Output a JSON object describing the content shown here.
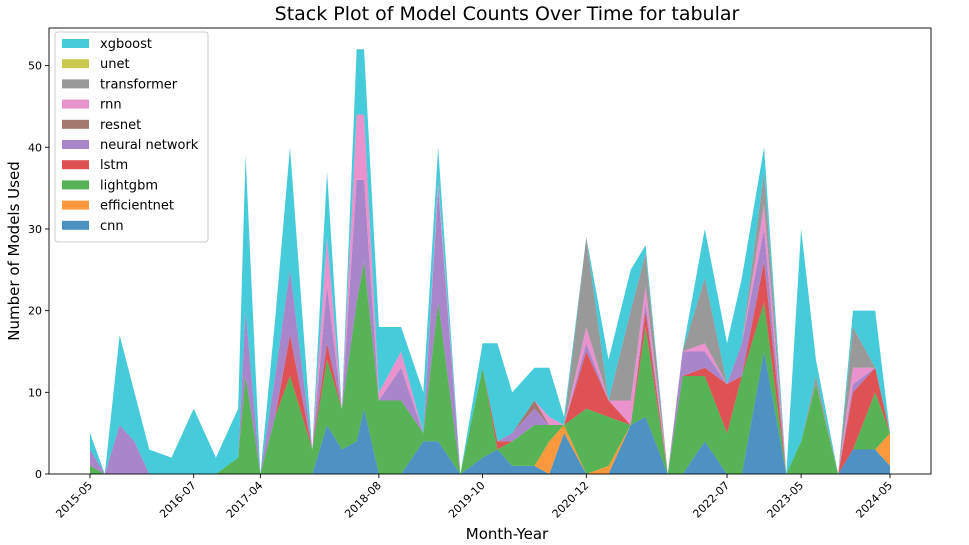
{
  "chart_data": {
    "type": "area",
    "stacked": true,
    "title": "Stack Plot of Model Counts Over Time for tabular",
    "xlabel": "Month-Year",
    "ylabel": "Number of Models Used",
    "xlim": [
      "2015-05",
      "2024-05"
    ],
    "ylim": [
      0,
      54.6
    ],
    "x_ticks": [
      "2015-05",
      "2016-07",
      "2017-04",
      "2018-08",
      "2019-10",
      "2020-12",
      "2022-07",
      "2023-05",
      "2024-05"
    ],
    "y_ticks": [
      0,
      10,
      20,
      30,
      40,
      50
    ],
    "legend_position": "upper-left",
    "x": [
      "2015-05",
      "2015-07",
      "2015-09",
      "2015-11",
      "2016-01",
      "2016-04",
      "2016-07",
      "2016-10",
      "2017-01",
      "2017-02",
      "2017-04",
      "2017-06",
      "2017-08",
      "2017-11",
      "2018-01",
      "2018-03",
      "2018-05",
      "2018-06",
      "2018-08",
      "2018-11",
      "2019-02",
      "2019-04",
      "2019-07",
      "2019-10",
      "2019-12",
      "2020-02",
      "2020-05",
      "2020-07",
      "2020-09",
      "2020-12",
      "2021-03",
      "2021-06",
      "2021-08",
      "2021-11",
      "2022-01",
      "2022-04",
      "2022-07",
      "2022-09",
      "2022-12",
      "2023-03",
      "2023-05",
      "2023-07",
      "2023-10",
      "2023-12",
      "2024-03",
      "2024-05"
    ],
    "series": [
      {
        "name": "cnn",
        "color": "#1f77b4",
        "values": [
          0,
          0,
          0,
          0,
          0,
          0,
          0,
          0,
          0,
          0,
          0,
          0,
          0,
          0,
          6,
          3,
          4,
          8,
          0,
          0,
          4,
          4,
          0,
          2,
          3,
          1,
          1,
          0,
          5,
          0,
          0,
          6,
          7,
          0,
          0,
          4,
          0,
          0,
          15,
          0,
          0,
          0,
          0,
          3,
          3,
          1
        ]
      },
      {
        "name": "efficientnet",
        "color": "#ff7f0e",
        "values": [
          0,
          0,
          0,
          0,
          0,
          0,
          0,
          0,
          0,
          0,
          0,
          0,
          0,
          0,
          0,
          0,
          0,
          0,
          0,
          0,
          0,
          0,
          0,
          0,
          0,
          0,
          0,
          4,
          1,
          0,
          1,
          0,
          0,
          0,
          0,
          0,
          0,
          0,
          0,
          0,
          0,
          0,
          0,
          0,
          0,
          4
        ]
      },
      {
        "name": "lightgbm",
        "color": "#2ca02c",
        "values": [
          1,
          0,
          0,
          0,
          0,
          0,
          0,
          0,
          2,
          12,
          0,
          7,
          12,
          3,
          8,
          5,
          17,
          18,
          9,
          9,
          1,
          17,
          0,
          11,
          0,
          3,
          5,
          2,
          0,
          8,
          6,
          0,
          11,
          0,
          12,
          8,
          5,
          12,
          6,
          0,
          4,
          11,
          0,
          0,
          7,
          0
        ]
      },
      {
        "name": "lstm",
        "color": "#d62728",
        "values": [
          0,
          0,
          0,
          0,
          0,
          0,
          0,
          0,
          0,
          0,
          0,
          0,
          5,
          0,
          2,
          0,
          0,
          0,
          0,
          0,
          0,
          0,
          0,
          0,
          1,
          0,
          0,
          0,
          0,
          7,
          2,
          0,
          2,
          0,
          0,
          1,
          6,
          0,
          5,
          0,
          0,
          0,
          0,
          7,
          3,
          0
        ]
      },
      {
        "name": "neural network",
        "color": "#9467bd",
        "values": [
          2,
          0,
          6,
          4,
          0,
          0,
          0,
          0,
          0,
          8,
          0,
          5,
          8,
          0,
          7,
          0,
          15,
          10,
          0,
          4,
          0,
          14,
          0,
          0,
          0,
          1,
          2,
          0,
          0,
          1,
          0,
          0,
          1,
          0,
          3,
          2,
          0,
          4,
          4,
          0,
          0,
          0,
          0,
          1,
          0,
          0
        ]
      },
      {
        "name": "resnet",
        "color": "#8c564b",
        "values": [
          0,
          0,
          0,
          0,
          0,
          0,
          0,
          0,
          0,
          0,
          0,
          0,
          0,
          0,
          0,
          0,
          0,
          0,
          0,
          0,
          0,
          0,
          0,
          0,
          0,
          0,
          1,
          0,
          0,
          0,
          0,
          0,
          0,
          0,
          0,
          0,
          0,
          0,
          0,
          0,
          0,
          0,
          0,
          0,
          0,
          0
        ]
      },
      {
        "name": "rnn",
        "color": "#e377c2",
        "values": [
          0,
          0,
          0,
          0,
          0,
          0,
          0,
          0,
          0,
          0,
          0,
          0,
          0,
          0,
          6,
          0,
          8,
          8,
          1,
          2,
          0,
          1,
          0,
          0,
          0,
          0,
          0,
          1,
          0,
          2,
          0,
          3,
          2,
          0,
          0,
          1,
          0,
          0,
          3,
          0,
          0,
          0,
          0,
          2,
          0,
          0
        ]
      },
      {
        "name": "transformer",
        "color": "#7f7f7f",
        "values": [
          0,
          0,
          0,
          0,
          0,
          0,
          0,
          0,
          0,
          0,
          0,
          0,
          0,
          0,
          0,
          0,
          0,
          0,
          0,
          0,
          0,
          0,
          0,
          0,
          0,
          0,
          0,
          0,
          0,
          11,
          0,
          11,
          4,
          0,
          0,
          8,
          0,
          0,
          4,
          0,
          0,
          1,
          0,
          5,
          0,
          0
        ]
      },
      {
        "name": "unet",
        "color": "#bcbd22",
        "values": [
          0,
          0,
          0,
          0,
          0,
          0,
          0,
          0,
          0,
          0,
          0,
          0,
          0,
          0,
          0,
          0,
          0,
          0,
          0,
          0,
          0,
          0,
          0,
          0,
          0,
          0,
          0,
          0,
          0,
          0,
          0,
          0,
          0,
          0,
          0,
          0,
          0,
          0,
          0,
          0,
          0,
          0,
          0,
          0,
          0,
          0
        ]
      },
      {
        "name": "xgboost",
        "color": "#17becf",
        "values": [
          2,
          0,
          11,
          6,
          3,
          2,
          8,
          2,
          6,
          19,
          0,
          7,
          15,
          0,
          8,
          0,
          8,
          8,
          8,
          3,
          5,
          4,
          0,
          3,
          12,
          5,
          4,
          6,
          1,
          0,
          5,
          5,
          1,
          0,
          0,
          6,
          5,
          8,
          3,
          0,
          26,
          2,
          0,
          2,
          7,
          0
        ]
      }
    ]
  }
}
